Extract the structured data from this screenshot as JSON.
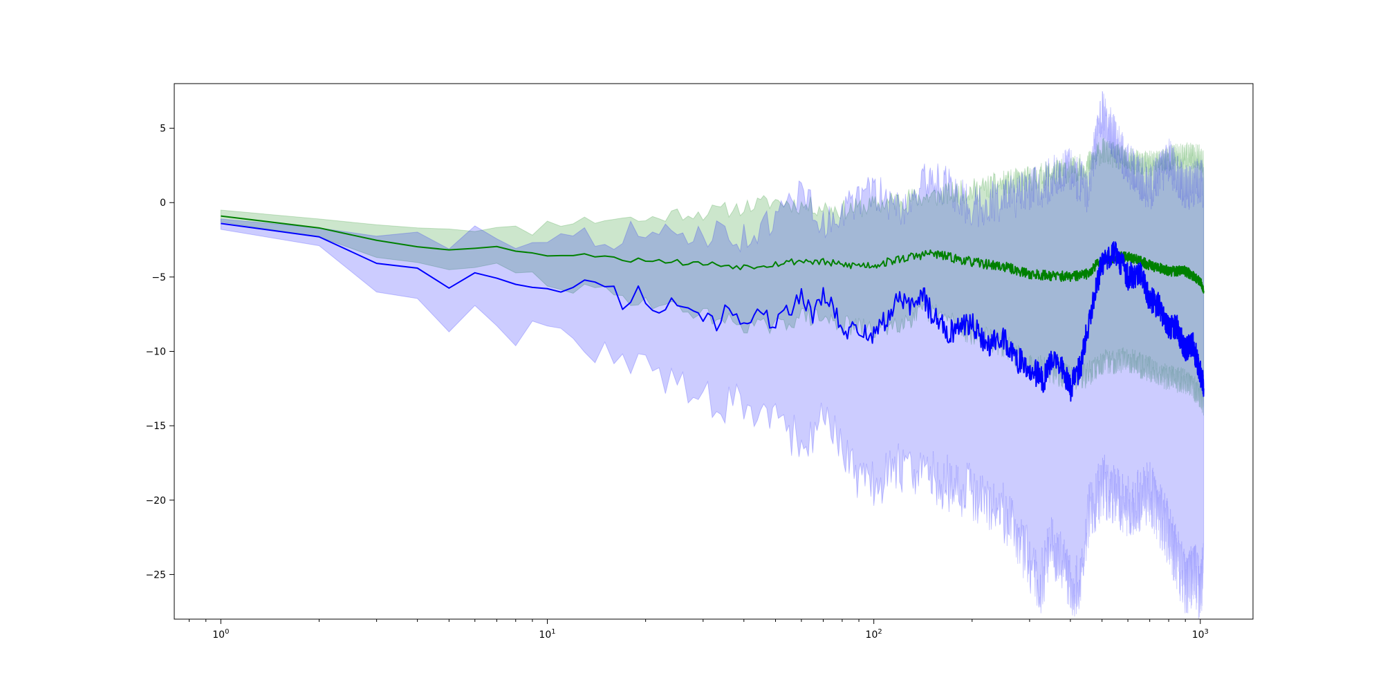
{
  "chart_data": {
    "type": "line",
    "title": "",
    "xlabel": "",
    "ylabel": "",
    "xscale": "log",
    "xlim": [
      0.72,
      1450
    ],
    "ylim": [
      -28,
      8
    ],
    "grid": false,
    "legend": "none",
    "x_ticks": [
      {
        "value": 1,
        "base": "10",
        "exp": "0"
      },
      {
        "value": 10,
        "base": "10",
        "exp": "1"
      },
      {
        "value": 100,
        "base": "10",
        "exp": "2"
      },
      {
        "value": 1000,
        "base": "10",
        "exp": "3"
      }
    ],
    "y_ticks": [
      {
        "value": 5,
        "label": "5"
      },
      {
        "value": 0,
        "label": "0"
      },
      {
        "value": -5,
        "label": "−5"
      },
      {
        "value": -10,
        "label": "−10"
      },
      {
        "value": -15,
        "label": "−15"
      },
      {
        "value": -20,
        "label": "−20"
      },
      {
        "value": -25,
        "label": "−25"
      }
    ],
    "series": [
      {
        "color": "#008000",
        "band_color": "#008000",
        "points": [
          [
            1,
            -0.9
          ],
          [
            2,
            -1.7
          ],
          [
            3,
            -2.5
          ],
          [
            4,
            -2.9
          ],
          [
            5,
            -3.1
          ],
          [
            6,
            -3.1
          ],
          [
            7,
            -3.0
          ],
          [
            8,
            -3.2
          ],
          [
            9,
            -3.3
          ],
          [
            10,
            -3.5
          ],
          [
            12,
            -3.6
          ],
          [
            14,
            -3.5
          ],
          [
            16,
            -3.6
          ],
          [
            18,
            -3.9
          ],
          [
            20,
            -3.8
          ],
          [
            25,
            -4.0
          ],
          [
            30,
            -4.1
          ],
          [
            35,
            -4.2
          ],
          [
            40,
            -4.3
          ],
          [
            50,
            -4.1
          ],
          [
            60,
            -3.9
          ],
          [
            70,
            -4.0
          ],
          [
            80,
            -4.2
          ],
          [
            100,
            -4.2
          ],
          [
            120,
            -3.8
          ],
          [
            150,
            -3.4
          ],
          [
            200,
            -4.0
          ],
          [
            250,
            -4.3
          ],
          [
            300,
            -4.8
          ],
          [
            350,
            -4.9
          ],
          [
            400,
            -5.0
          ],
          [
            450,
            -4.8
          ],
          [
            500,
            -3.8
          ],
          [
            600,
            -3.6
          ],
          [
            700,
            -4.2
          ],
          [
            800,
            -4.6
          ],
          [
            900,
            -4.6
          ],
          [
            1000,
            -5.3
          ],
          [
            1024,
            -5.8
          ]
        ],
        "upper": [
          [
            1,
            -0.5
          ],
          [
            2,
            -1.1
          ],
          [
            3,
            -1.4
          ],
          [
            4,
            -1.6
          ],
          [
            5,
            -1.7
          ],
          [
            6,
            -1.7
          ],
          [
            7,
            -1.8
          ],
          [
            8,
            -1.8
          ],
          [
            9,
            -1.9
          ],
          [
            10,
            -1.4
          ],
          [
            12,
            -1.2
          ],
          [
            14,
            -1.2
          ],
          [
            16,
            -1.0
          ],
          [
            18,
            -1.1
          ],
          [
            20,
            -1.2
          ],
          [
            25,
            -0.7
          ],
          [
            30,
            -0.7
          ],
          [
            35,
            -0.5
          ],
          [
            40,
            -0.3
          ],
          [
            50,
            0.1
          ],
          [
            60,
            -0.2
          ],
          [
            70,
            -0.3
          ],
          [
            80,
            -0.5
          ],
          [
            100,
            -0.2
          ],
          [
            120,
            0.2
          ],
          [
            150,
            0.4
          ],
          [
            200,
            0.8
          ],
          [
            250,
            1.3
          ],
          [
            300,
            1.6
          ],
          [
            350,
            2.0
          ],
          [
            400,
            2.2
          ],
          [
            450,
            2.5
          ],
          [
            500,
            3.5
          ],
          [
            600,
            2.8
          ],
          [
            700,
            2.6
          ],
          [
            800,
            3.0
          ],
          [
            900,
            3.2
          ],
          [
            1000,
            3.0
          ],
          [
            1024,
            2.6
          ]
        ],
        "lower": [
          [
            1,
            -1.3
          ],
          [
            2,
            -2.3
          ],
          [
            3,
            -3.6
          ],
          [
            4,
            -4.2
          ],
          [
            5,
            -4.6
          ],
          [
            6,
            -4.5
          ],
          [
            7,
            -4.2
          ],
          [
            8,
            -4.6
          ],
          [
            9,
            -4.9
          ],
          [
            10,
            -5.4
          ],
          [
            12,
            -5.9
          ],
          [
            14,
            -5.8
          ],
          [
            16,
            -6.2
          ],
          [
            18,
            -6.5
          ],
          [
            20,
            -6.6
          ],
          [
            25,
            -7.1
          ],
          [
            30,
            -7.5
          ],
          [
            35,
            -7.9
          ],
          [
            40,
            -8.2
          ],
          [
            50,
            -8.4
          ],
          [
            60,
            -7.6
          ],
          [
            70,
            -7.8
          ],
          [
            80,
            -8.2
          ],
          [
            100,
            -8.6
          ],
          [
            120,
            -8.0
          ],
          [
            150,
            -7.3
          ],
          [
            200,
            -8.8
          ],
          [
            250,
            -9.6
          ],
          [
            300,
            -10.9
          ],
          [
            350,
            -11.3
          ],
          [
            400,
            -11.8
          ],
          [
            450,
            -11.6
          ],
          [
            500,
            -10.8
          ],
          [
            600,
            -10.5
          ],
          [
            700,
            -11.2
          ],
          [
            800,
            -11.8
          ],
          [
            900,
            -12.0
          ],
          [
            1000,
            -12.9
          ],
          [
            1024,
            -13.5
          ]
        ]
      },
      {
        "color": "#0000ff",
        "band_color": "#0000ff",
        "points": [
          [
            1,
            -1.4
          ],
          [
            2,
            -2.3
          ],
          [
            3,
            -4.0
          ],
          [
            4,
            -4.3
          ],
          [
            5,
            -5.5
          ],
          [
            6,
            -4.5
          ],
          [
            7,
            -5.0
          ],
          [
            8,
            -5.8
          ],
          [
            9,
            -5.9
          ],
          [
            10,
            -5.5
          ],
          [
            11,
            -5.7
          ],
          [
            12,
            -5.6
          ],
          [
            13,
            -5.4
          ],
          [
            14,
            -5.7
          ],
          [
            15,
            -5.3
          ],
          [
            16,
            -5.8
          ],
          [
            17,
            -6.8
          ],
          [
            18,
            -6.5
          ],
          [
            19,
            -5.9
          ],
          [
            20,
            -6.6
          ],
          [
            22,
            -7.1
          ],
          [
            24,
            -6.6
          ],
          [
            26,
            -7.5
          ],
          [
            28,
            -7.2
          ],
          [
            30,
            -7.7
          ],
          [
            33,
            -8.2
          ],
          [
            36,
            -7.0
          ],
          [
            40,
            -8.0
          ],
          [
            45,
            -7.4
          ],
          [
            50,
            -8.3
          ],
          [
            55,
            -7.2
          ],
          [
            60,
            -6.1
          ],
          [
            65,
            -7.6
          ],
          [
            70,
            -6.3
          ],
          [
            75,
            -7.0
          ],
          [
            80,
            -8.8
          ],
          [
            90,
            -8.5
          ],
          [
            100,
            -8.9
          ],
          [
            110,
            -7.8
          ],
          [
            120,
            -6.3
          ],
          [
            130,
            -7.2
          ],
          [
            140,
            -6.0
          ],
          [
            150,
            -7.4
          ],
          [
            170,
            -8.7
          ],
          [
            200,
            -8.0
          ],
          [
            220,
            -9.6
          ],
          [
            250,
            -9.0
          ],
          [
            270,
            -10.5
          ],
          [
            300,
            -11.0
          ],
          [
            330,
            -12.0
          ],
          [
            360,
            -10.2
          ],
          [
            400,
            -12.5
          ],
          [
            430,
            -11.0
          ],
          [
            460,
            -7.5
          ],
          [
            500,
            -4.0
          ],
          [
            550,
            -3.3
          ],
          [
            600,
            -5.0
          ],
          [
            650,
            -4.7
          ],
          [
            700,
            -6.5
          ],
          [
            750,
            -7.0
          ],
          [
            800,
            -8.5
          ],
          [
            850,
            -8.3
          ],
          [
            900,
            -10.0
          ],
          [
            950,
            -9.5
          ],
          [
            1000,
            -11.5
          ],
          [
            1024,
            -12.2
          ]
        ],
        "upper": [
          [
            1,
            -1.1
          ],
          [
            2,
            -1.7
          ],
          [
            3,
            -2.1
          ],
          [
            4,
            -2.3
          ],
          [
            5,
            -2.8
          ],
          [
            6,
            -1.4
          ],
          [
            7,
            -2.3
          ],
          [
            8,
            -2.6
          ],
          [
            9,
            -2.2
          ],
          [
            10,
            -2.2
          ],
          [
            12,
            -2.4
          ],
          [
            14,
            -2.3
          ],
          [
            16,
            -2.4
          ],
          [
            18,
            -1.9
          ],
          [
            20,
            -2.5
          ],
          [
            25,
            -2.1
          ],
          [
            30,
            -2.1
          ],
          [
            35,
            -2.0
          ],
          [
            40,
            -2.4
          ],
          [
            50,
            -1.2
          ],
          [
            60,
            1.0
          ],
          [
            70,
            -1.6
          ],
          [
            80,
            -0.5
          ],
          [
            100,
            0.8
          ],
          [
            120,
            -0.5
          ],
          [
            150,
            1.8
          ],
          [
            200,
            -0.3
          ],
          [
            250,
            0.2
          ],
          [
            300,
            0.6
          ],
          [
            350,
            1.6
          ],
          [
            400,
            2.3
          ],
          [
            450,
            0.8
          ],
          [
            500,
            6.0
          ],
          [
            600,
            2.5
          ],
          [
            700,
            1.0
          ],
          [
            800,
            2.8
          ],
          [
            900,
            0.9
          ],
          [
            1000,
            1.5
          ],
          [
            1024,
            1.0
          ]
        ],
        "lower": [
          [
            1,
            -1.8
          ],
          [
            2,
            -2.9
          ],
          [
            3,
            -5.8
          ],
          [
            4,
            -6.3
          ],
          [
            5,
            -8.2
          ],
          [
            6,
            -7.5
          ],
          [
            7,
            -7.6
          ],
          [
            8,
            -8.9
          ],
          [
            9,
            -8.8
          ],
          [
            10,
            -8.8
          ],
          [
            12,
            -9.2
          ],
          [
            14,
            -9.8
          ],
          [
            16,
            -10.3
          ],
          [
            18,
            -11.2
          ],
          [
            20,
            -11.0
          ],
          [
            22,
            -11.8
          ],
          [
            25,
            -11.5
          ],
          [
            30,
            -13.2
          ],
          [
            35,
            -13.8
          ],
          [
            40,
            -13.5
          ],
          [
            45,
            -14.3
          ],
          [
            50,
            -14.0
          ],
          [
            60,
            -16.5
          ],
          [
            70,
            -14.9
          ],
          [
            80,
            -16.2
          ],
          [
            90,
            -18.5
          ],
          [
            100,
            -19.0
          ],
          [
            120,
            -17.8
          ],
          [
            150,
            -18.4
          ],
          [
            200,
            -19.5
          ],
          [
            250,
            -20.8
          ],
          [
            300,
            -24.0
          ],
          [
            320,
            -26.2
          ],
          [
            350,
            -22.8
          ],
          [
            400,
            -25.5
          ],
          [
            430,
            -25.9
          ],
          [
            450,
            -21.4
          ],
          [
            500,
            -19.0
          ],
          [
            600,
            -20.5
          ],
          [
            700,
            -19.5
          ],
          [
            800,
            -22.3
          ],
          [
            900,
            -25.7
          ],
          [
            960,
            -24.8
          ],
          [
            1000,
            -26.5
          ],
          [
            1024,
            -24.5
          ]
        ]
      }
    ]
  }
}
